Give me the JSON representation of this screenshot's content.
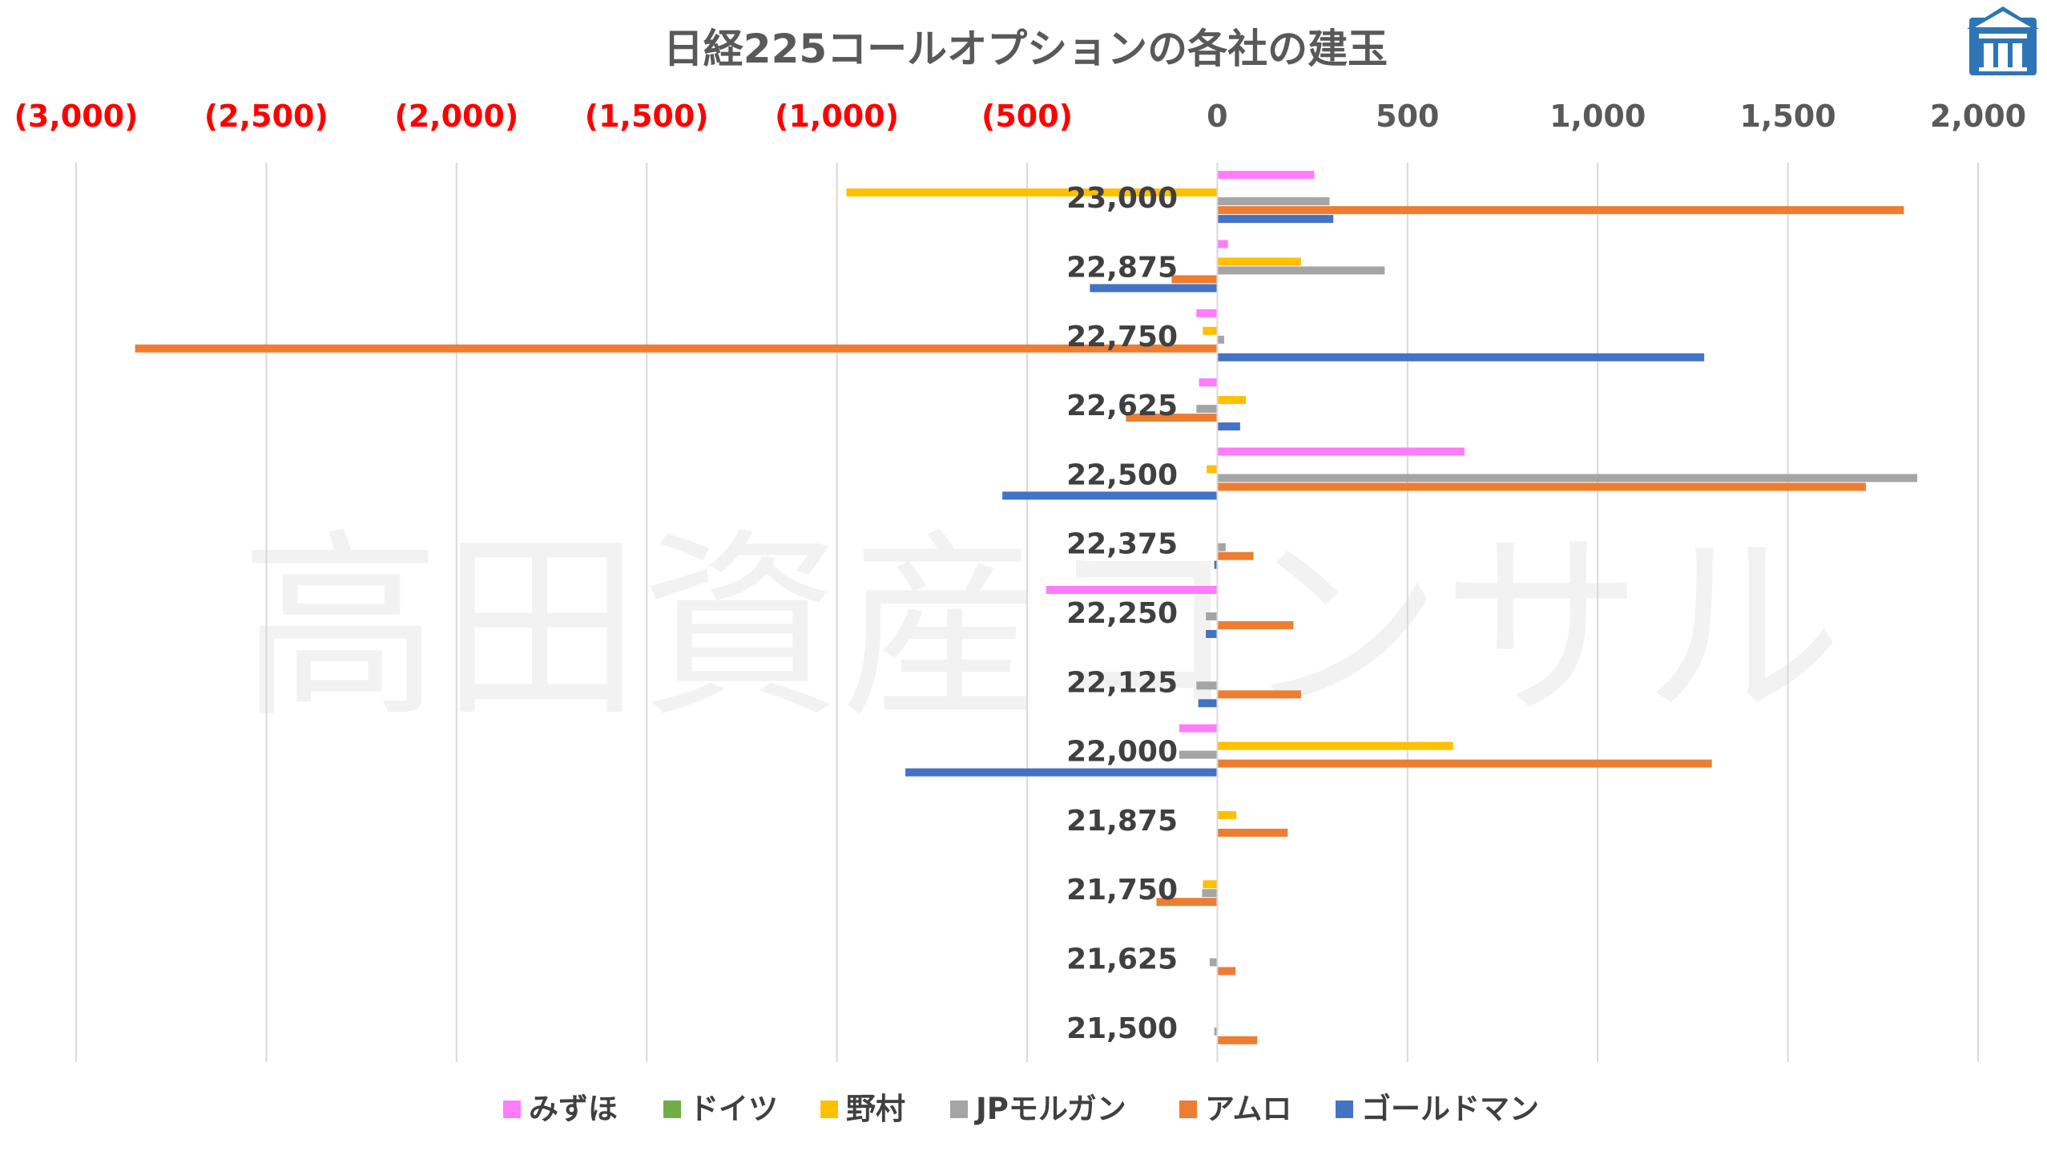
{
  "chart_data": {
    "type": "bar",
    "orientation": "horizontal",
    "title": "日経225コールオプションの各社の建玉",
    "watermark": "高田資産コンサル",
    "xlim": [
      -3000,
      2000
    ],
    "xticks": [
      {
        "value": -3000,
        "label": "(3,000)"
      },
      {
        "value": -2500,
        "label": "(2,500)"
      },
      {
        "value": -2000,
        "label": "(2,000)"
      },
      {
        "value": -1500,
        "label": "(1,500)"
      },
      {
        "value": -1000,
        "label": "(1,000)"
      },
      {
        "value": -500,
        "label": "(500)"
      },
      {
        "value": 0,
        "label": "0"
      },
      {
        "value": 500,
        "label": "500"
      },
      {
        "value": 1000,
        "label": "1,000"
      },
      {
        "value": 1500,
        "label": "1,500"
      },
      {
        "value": 2000,
        "label": "2,000"
      }
    ],
    "negative_tick_color": "#ff0000",
    "positive_tick_color": "#595959",
    "grid": true,
    "legend_position": "bottom",
    "categories": [
      "23,000",
      "22,875",
      "22,750",
      "22,625",
      "22,500",
      "22,375",
      "22,250",
      "22,125",
      "22,000",
      "21,875",
      "21,750",
      "21,625",
      "21,500"
    ],
    "series": [
      {
        "name": "みずほ",
        "color": "#ff7cfc",
        "values": [
          255,
          28,
          -55,
          -48,
          650,
          0,
          -450,
          0,
          -100,
          0,
          0,
          0,
          0
        ]
      },
      {
        "name": "ドイツ",
        "color": "#70ad47",
        "values": [
          0,
          0,
          0,
          0,
          0,
          0,
          0,
          0,
          0,
          0,
          0,
          0,
          0
        ]
      },
      {
        "name": "野村",
        "color": "#ffc000",
        "values": [
          -975,
          220,
          -38,
          75,
          -28,
          0,
          0,
          0,
          620,
          50,
          -38,
          0,
          0
        ]
      },
      {
        "name": "JPモルガン",
        "color": "#a5a5a5",
        "values": [
          295,
          440,
          18,
          -55,
          1840,
          22,
          -30,
          -55,
          -100,
          0,
          -40,
          -20,
          -8
        ]
      },
      {
        "name": "アムロ",
        "color": "#ed7d31",
        "values": [
          1805,
          -120,
          -2845,
          -240,
          1705,
          95,
          200,
          220,
          1300,
          185,
          -160,
          48,
          105
        ]
      },
      {
        "name": "ゴールドマン",
        "color": "#4472c4",
        "values": [
          305,
          -335,
          1280,
          60,
          -565,
          -8,
          -30,
          -50,
          -820,
          0,
          0,
          0,
          0
        ]
      }
    ]
  }
}
